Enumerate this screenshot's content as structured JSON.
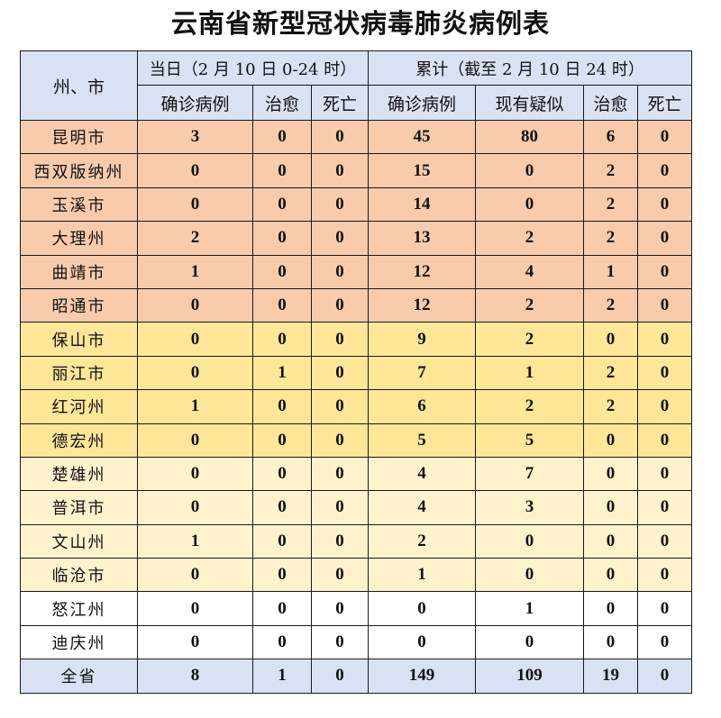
{
  "title": "云南省新型冠状病毒肺炎病例表",
  "header": {
    "region": "州、市",
    "daily_group": "当日（2 月 10 日 0-24 时）",
    "cumulative_group": "累计（截至 2 月 10 日 24 时）",
    "daily_cols": [
      "确诊病例",
      "治愈",
      "死亡"
    ],
    "cumulative_cols": [
      "确诊病例",
      "现有疑似",
      "治愈",
      "死亡"
    ]
  },
  "colors": {
    "header": "#d9e2f3",
    "orange": "#f8cbad",
    "yellow": "#ffe699",
    "lightyellow": "#fff2cc",
    "white": "#ffffff",
    "total": "#d9e2f3"
  },
  "rows": [
    {
      "name": "昆明市",
      "color": "orange",
      "daily_confirmed": "3",
      "daily_cured": "0",
      "daily_deaths": "0",
      "cum_confirmed": "45",
      "cum_suspected": "80",
      "cum_cured": "6",
      "cum_deaths": "0"
    },
    {
      "name": "西双版纳州",
      "color": "orange",
      "daily_confirmed": "0",
      "daily_cured": "0",
      "daily_deaths": "0",
      "cum_confirmed": "15",
      "cum_suspected": "0",
      "cum_cured": "2",
      "cum_deaths": "0"
    },
    {
      "name": "玉溪市",
      "color": "orange",
      "daily_confirmed": "0",
      "daily_cured": "0",
      "daily_deaths": "0",
      "cum_confirmed": "14",
      "cum_suspected": "0",
      "cum_cured": "2",
      "cum_deaths": "0"
    },
    {
      "name": "大理州",
      "color": "orange",
      "daily_confirmed": "2",
      "daily_cured": "0",
      "daily_deaths": "0",
      "cum_confirmed": "13",
      "cum_suspected": "2",
      "cum_cured": "2",
      "cum_deaths": "0"
    },
    {
      "name": "曲靖市",
      "color": "orange",
      "daily_confirmed": "1",
      "daily_cured": "0",
      "daily_deaths": "0",
      "cum_confirmed": "12",
      "cum_suspected": "4",
      "cum_cured": "1",
      "cum_deaths": "0"
    },
    {
      "name": "昭通市",
      "color": "orange",
      "daily_confirmed": "0",
      "daily_cured": "0",
      "daily_deaths": "0",
      "cum_confirmed": "12",
      "cum_suspected": "2",
      "cum_cured": "2",
      "cum_deaths": "0"
    },
    {
      "name": "保山市",
      "color": "yellow",
      "daily_confirmed": "0",
      "daily_cured": "0",
      "daily_deaths": "0",
      "cum_confirmed": "9",
      "cum_suspected": "2",
      "cum_cured": "0",
      "cum_deaths": "0"
    },
    {
      "name": "丽江市",
      "color": "yellow",
      "daily_confirmed": "0",
      "daily_cured": "1",
      "daily_deaths": "0",
      "cum_confirmed": "7",
      "cum_suspected": "1",
      "cum_cured": "2",
      "cum_deaths": "0"
    },
    {
      "name": "红河州",
      "color": "yellow",
      "daily_confirmed": "1",
      "daily_cured": "0",
      "daily_deaths": "0",
      "cum_confirmed": "6",
      "cum_suspected": "2",
      "cum_cured": "2",
      "cum_deaths": "0"
    },
    {
      "name": "德宏州",
      "color": "yellow",
      "daily_confirmed": "0",
      "daily_cured": "0",
      "daily_deaths": "0",
      "cum_confirmed": "5",
      "cum_suspected": "5",
      "cum_cured": "0",
      "cum_deaths": "0"
    },
    {
      "name": "楚雄州",
      "color": "lightyellow",
      "daily_confirmed": "0",
      "daily_cured": "0",
      "daily_deaths": "0",
      "cum_confirmed": "4",
      "cum_suspected": "7",
      "cum_cured": "0",
      "cum_deaths": "0"
    },
    {
      "name": "普洱市",
      "color": "lightyellow",
      "daily_confirmed": "0",
      "daily_cured": "0",
      "daily_deaths": "0",
      "cum_confirmed": "4",
      "cum_suspected": "3",
      "cum_cured": "0",
      "cum_deaths": "0"
    },
    {
      "name": "文山州",
      "color": "lightyellow",
      "daily_confirmed": "1",
      "daily_cured": "0",
      "daily_deaths": "0",
      "cum_confirmed": "2",
      "cum_suspected": "0",
      "cum_cured": "0",
      "cum_deaths": "0"
    },
    {
      "name": "临沧市",
      "color": "lightyellow",
      "daily_confirmed": "0",
      "daily_cured": "0",
      "daily_deaths": "0",
      "cum_confirmed": "1",
      "cum_suspected": "0",
      "cum_cured": "0",
      "cum_deaths": "0"
    },
    {
      "name": "怒江州",
      "color": "white",
      "daily_confirmed": "0",
      "daily_cured": "0",
      "daily_deaths": "0",
      "cum_confirmed": "0",
      "cum_suspected": "1",
      "cum_cured": "0",
      "cum_deaths": "0"
    },
    {
      "name": "迪庆州",
      "color": "white",
      "daily_confirmed": "0",
      "daily_cured": "0",
      "daily_deaths": "0",
      "cum_confirmed": "0",
      "cum_suspected": "0",
      "cum_cured": "0",
      "cum_deaths": "0"
    }
  ],
  "total": {
    "name": "全省",
    "daily_confirmed": "8",
    "daily_cured": "1",
    "daily_deaths": "0",
    "cum_confirmed": "149",
    "cum_suspected": "109",
    "cum_cured": "19",
    "cum_deaths": "0"
  }
}
